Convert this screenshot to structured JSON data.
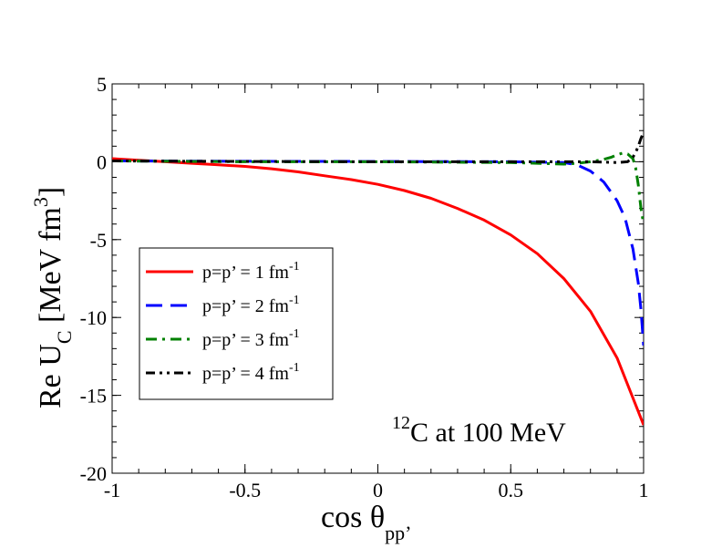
{
  "chart_data": {
    "type": "line",
    "title": "",
    "xlabel": "cos θ",
    "xlabel_subscript": "pp’",
    "ylabel": "Re U",
    "ylabel_subscript": "C",
    "ylabel_units": "[MeV fm",
    "ylabel_units_sup": "3",
    "ylabel_units_end": "]",
    "xlim": [
      -1,
      1
    ],
    "ylim": [
      -20,
      5
    ],
    "xticks": [
      -1,
      -0.5,
      0,
      0.5,
      1
    ],
    "xtick_labels": [
      "-1",
      "-0.5",
      "0",
      "0.5",
      "1"
    ],
    "yticks": [
      -20,
      -15,
      -10,
      -5,
      0,
      5
    ],
    "ytick_labels": [
      "-20",
      "-15",
      "-10",
      "-5",
      "0",
      "5"
    ],
    "grid": false,
    "legend_position": "lower-left",
    "annotation": {
      "superscript": "12",
      "text": "C  at 100 MeV"
    },
    "series": [
      {
        "name": "p=p’ = 1 fm",
        "name_sup": "-1",
        "color": "#ff0000",
        "dash": "solid",
        "x": [
          -1,
          -0.9,
          -0.8,
          -0.7,
          -0.6,
          -0.5,
          -0.4,
          -0.3,
          -0.2,
          -0.1,
          0,
          0.1,
          0.2,
          0.3,
          0.4,
          0.5,
          0.6,
          0.7,
          0.8,
          0.9,
          1.0
        ],
        "y": [
          0.2,
          0.1,
          0.0,
          -0.1,
          -0.2,
          -0.3,
          -0.45,
          -0.65,
          -0.9,
          -1.15,
          -1.45,
          -1.85,
          -2.35,
          -3.0,
          -3.75,
          -4.7,
          -5.9,
          -7.5,
          -9.6,
          -12.6,
          -16.9
        ]
      },
      {
        "name": "p=p’ = 2 fm",
        "name_sup": "-1",
        "color": "#0000ff",
        "dash": "dashed",
        "x": [
          -1,
          -0.5,
          0,
          0.5,
          0.7,
          0.75,
          0.8,
          0.85,
          0.9,
          0.93,
          0.96,
          0.98,
          0.99,
          1.0
        ],
        "y": [
          0.05,
          0.03,
          0.02,
          0.0,
          -0.05,
          -0.2,
          -0.6,
          -1.3,
          -2.5,
          -3.6,
          -5.6,
          -7.8,
          -9.5,
          -11.8
        ]
      },
      {
        "name": "p=p’ = 3 fm",
        "name_sup": "-1",
        "color": "#008000",
        "dash": "dashdot",
        "x": [
          -1,
          -0.5,
          0,
          0.5,
          0.6,
          0.7,
          0.75,
          0.8,
          0.85,
          0.88,
          0.9,
          0.92,
          0.94,
          0.96,
          0.97,
          0.98,
          0.99,
          1.0
        ],
        "y": [
          0.05,
          0.0,
          0.0,
          -0.05,
          -0.1,
          -0.15,
          -0.1,
          0.0,
          0.15,
          0.3,
          0.45,
          0.55,
          0.5,
          0.2,
          -0.4,
          -1.5,
          -3.0,
          -4.0
        ]
      },
      {
        "name": "p=p’ = 4 fm",
        "name_sup": "-1",
        "color": "#000000",
        "dash": "dashdotdot",
        "x": [
          -1,
          -0.5,
          0,
          0.5,
          0.8,
          0.9,
          0.94,
          0.96,
          0.97,
          0.98,
          0.99,
          1.0
        ],
        "y": [
          0.05,
          0.02,
          0.0,
          0.0,
          0.0,
          -0.05,
          0.0,
          0.3,
          0.6,
          1.0,
          1.5,
          1.9
        ]
      }
    ]
  }
}
